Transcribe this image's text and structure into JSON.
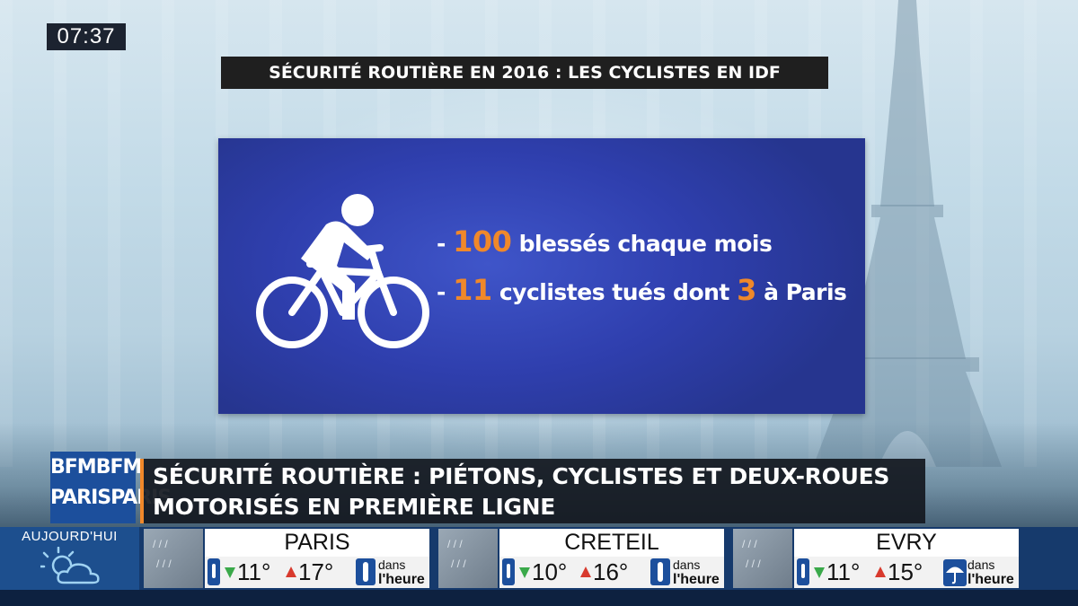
{
  "clock": "07:37",
  "topic_banner": "SÉCURITÉ ROUTIÈRE EN 2016 : LES CYCLISTES EN IDF",
  "card": {
    "stat1": {
      "dash": "- ",
      "number": "100",
      "text": " blessés chaque mois"
    },
    "stat2": {
      "dash": "- ",
      "number1": "11",
      "text1": " cyclistes tués dont ",
      "number2": "3",
      "text2": " à Paris"
    },
    "number_color": "#f0882a",
    "icon": "cyclist-icon"
  },
  "logo": {
    "line1": "BFMBFM",
    "line2a": "PARIS",
    "line2b": "PARIS"
  },
  "headline": {
    "line1": "SÉCURITÉ ROUTIÈRE : PIÉTONS, CYCLISTES ET DEUX-ROUES",
    "line2": "MOTORISÉS EN PREMIÈRE LIGNE"
  },
  "weather": {
    "today_label": "AUJOURD'HUI",
    "cities": [
      {
        "name": "PARIS",
        "min": "11°",
        "max": "17°",
        "forecast_line1": "dans",
        "forecast_line2": "l'heure",
        "forecast_icon": "rain-gauge-icon"
      },
      {
        "name": "CRETEIL",
        "min": "10°",
        "max": "16°",
        "forecast_line1": "dans",
        "forecast_line2": "l'heure",
        "forecast_icon": "rain-gauge-icon"
      },
      {
        "name": "EVRY",
        "min": "11°",
        "max": "15°",
        "forecast_line1": "dans",
        "forecast_line2": "l'heure",
        "forecast_icon": "umbrella-icon"
      }
    ]
  }
}
